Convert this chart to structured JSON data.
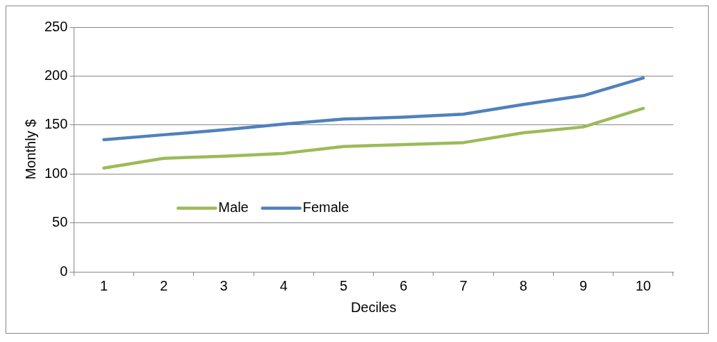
{
  "chart_data": {
    "type": "line",
    "xlabel": "Deciles",
    "ylabel": "Monthly $",
    "categories": [
      "1",
      "2",
      "3",
      "4",
      "5",
      "6",
      "7",
      "8",
      "9",
      "10"
    ],
    "series": [
      {
        "name": "Male",
        "color": "#9bbb59",
        "values": [
          106,
          116,
          118,
          121,
          128,
          130,
          132,
          142,
          148,
          167
        ]
      },
      {
        "name": "Female",
        "color": "#4f81bd",
        "values": [
          135,
          140,
          145,
          151,
          156,
          158,
          161,
          171,
          180,
          198
        ]
      }
    ],
    "ylim": [
      0,
      250
    ],
    "yticks": [
      0,
      50,
      100,
      150,
      200,
      250
    ],
    "grid": "y",
    "legend": "center left",
    "marker": "none",
    "line_style": "solid"
  }
}
